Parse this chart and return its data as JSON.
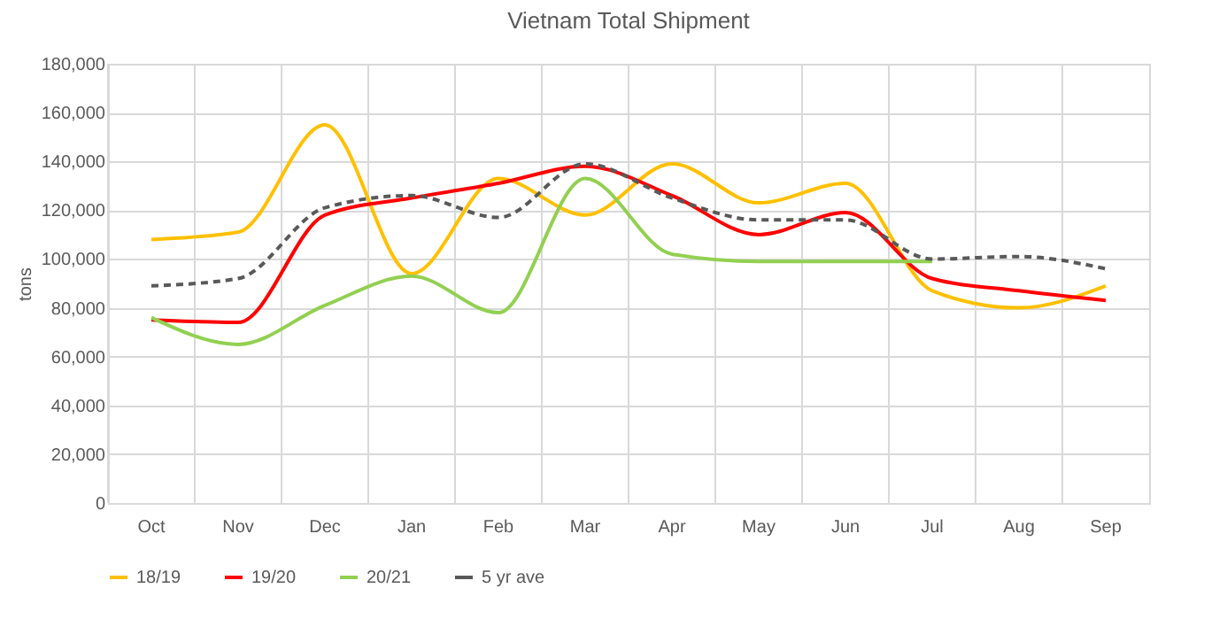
{
  "chart_data": {
    "type": "line",
    "title": "Vietnam Total Shipment",
    "ylabel": "tons",
    "categories": [
      "Oct",
      "Nov",
      "Dec",
      "Jan",
      "Feb",
      "Mar",
      "Apr",
      "May",
      "Jun",
      "Jul",
      "Aug",
      "Sep"
    ],
    "series": [
      {
        "name": "18/19",
        "color": "#ffc000",
        "values": [
          108000,
          111000,
          155000,
          94000,
          133000,
          118000,
          139000,
          123000,
          131000,
          87000,
          80000,
          89000
        ]
      },
      {
        "name": "19/20",
        "color": "#ff0000",
        "values": [
          75000,
          74000,
          118000,
          125000,
          131000,
          138000,
          126000,
          110000,
          119000,
          92000,
          87000,
          83000
        ]
      },
      {
        "name": "20/21",
        "color": "#92d050",
        "values": [
          76000,
          65000,
          81000,
          93000,
          78000,
          133000,
          102000,
          99000,
          99000,
          99000,
          null,
          null
        ]
      },
      {
        "name": "5 yr ave",
        "color": "#595959",
        "line_style": "dashed",
        "values": [
          89000,
          92000,
          121000,
          126000,
          117000,
          139000,
          125000,
          116000,
          116000,
          100000,
          101000,
          96000
        ]
      }
    ],
    "ylim": [
      0,
      180000
    ],
    "yticks": [
      0,
      {
        "value": 20000,
        "label": "20,000"
      },
      {
        "value": 40000,
        "label": "40,000"
      },
      {
        "value": 60000,
        "label": "60,000"
      },
      {
        "value": 80000,
        "label": "80,000"
      },
      {
        "value": 100000,
        "label": "100,000"
      },
      {
        "value": 120000,
        "label": "120,000"
      },
      {
        "value": 140000,
        "label": "140,000"
      },
      {
        "value": 160000,
        "label": "160,000"
      },
      {
        "value": 180000,
        "label": "180,000"
      }
    ],
    "grid": true,
    "legend": "bottom",
    "marker": "none"
  }
}
